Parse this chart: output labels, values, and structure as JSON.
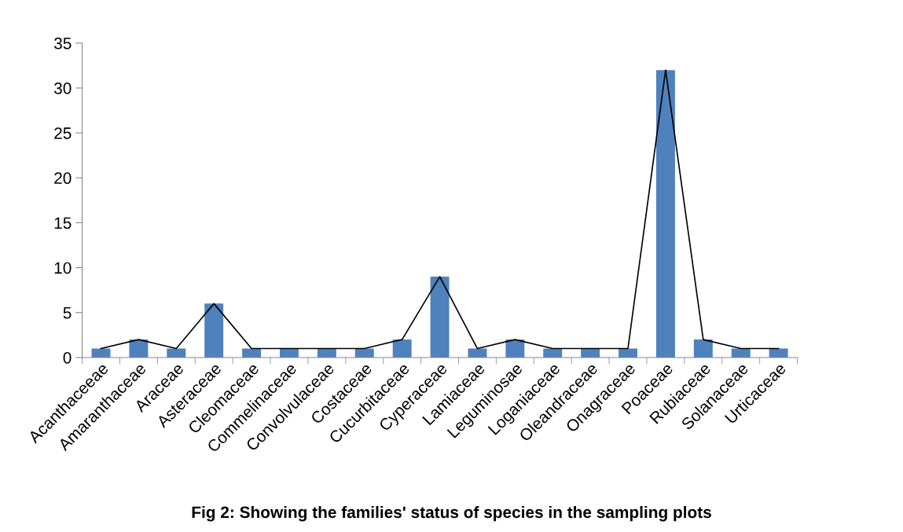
{
  "chart_data": {
    "type": "bar",
    "title": "Fig 2: Showing the families' status of species in the sampling plots",
    "categories": [
      "Acanthaceeae",
      "Amaranthaceae",
      "Araceae",
      "Asteraceae",
      "Cleomaceae",
      "Commelinaceae",
      "Convolvulaceae",
      "Costaceae",
      "Cucurbitaceae",
      "Cyperaceae",
      "Lamiaceae",
      "Leguminosae",
      "Loganiaceae",
      "Oleandraceae",
      "Onagraceae",
      "Poaceae",
      "Rubiaceae",
      "Solanaceae",
      "Urticaceae"
    ],
    "series": [
      {
        "type": "line",
        "color": "#000000",
        "values": [
          1,
          2,
          1,
          6,
          1,
          1,
          1,
          1,
          2,
          9,
          1,
          2,
          1,
          1,
          1,
          32,
          2,
          1,
          1
        ]
      },
      {
        "color": "#4f81bd",
        "values": [
          1,
          2,
          1,
          6,
          1,
          1,
          1,
          1,
          2,
          9,
          1,
          2,
          1,
          1,
          1,
          32,
          2,
          1,
          1
        ]
      }
    ],
    "ylim": [
      0,
      35
    ],
    "yticks": [
      0,
      5,
      10,
      15,
      20,
      25,
      30,
      35
    ],
    "grid": false,
    "legend": false
  }
}
